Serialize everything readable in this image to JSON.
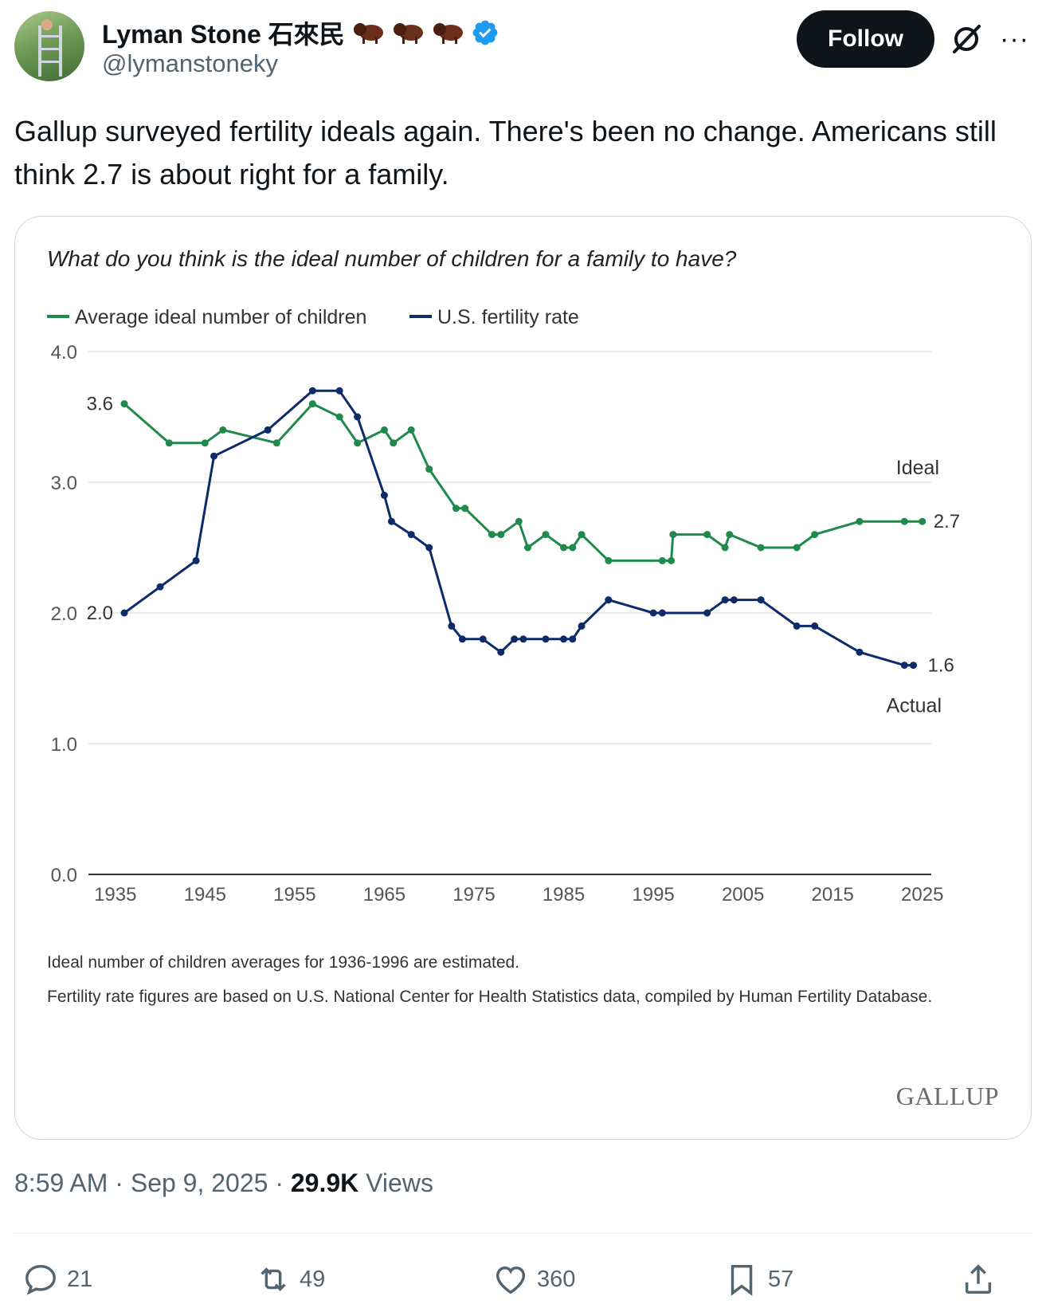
{
  "author": {
    "display_name": "Lyman Stone 石來民",
    "handle": "@lymanstoneky",
    "verified": true,
    "emoji": [
      "bison",
      "bison",
      "bison"
    ]
  },
  "header": {
    "follow_label": "Follow",
    "grok_icon": "grok-icon",
    "more_label": "···"
  },
  "tweet": {
    "text": "Gallup surveyed fertility ideals again. There's been no change. Americans still think 2.7 is about right for a family."
  },
  "chart_data": {
    "type": "line",
    "title": "What do you think is the ideal number of children for a family to have?",
    "ylim": [
      0,
      4
    ],
    "yticks": [
      "0.0",
      "1.0",
      "2.0",
      "3.0",
      "4.0"
    ],
    "xlim": [
      1932,
      2026
    ],
    "xticks": [
      "1935",
      "1945",
      "1955",
      "1965",
      "1975",
      "1985",
      "1995",
      "2005",
      "2015",
      "2025"
    ],
    "series": [
      {
        "name": "Average ideal number of children",
        "color": "#1f8a4c",
        "label": "Ideal",
        "start_label": "3.6",
        "end_label": "2.7",
        "x": [
          1936,
          1941,
          1945,
          1947,
          1953,
          1957,
          1960,
          1962,
          1965,
          1966,
          1968,
          1970,
          1973,
          1974,
          1977,
          1978,
          1980,
          1981,
          1983,
          1985,
          1986,
          1987,
          1990,
          1996,
          1997,
          1997.2,
          2001,
          2003,
          2003.5,
          2007,
          2011,
          2013,
          2018,
          2023,
          2025
        ],
        "values": [
          3.6,
          3.3,
          3.3,
          3.4,
          3.3,
          3.6,
          3.5,
          3.3,
          3.4,
          3.3,
          3.4,
          3.1,
          2.8,
          2.8,
          2.6,
          2.6,
          2.7,
          2.5,
          2.6,
          2.5,
          2.5,
          2.6,
          2.4,
          2.4,
          2.4,
          2.6,
          2.6,
          2.5,
          2.6,
          2.5,
          2.5,
          2.6,
          2.7,
          2.7,
          2.7
        ]
      },
      {
        "name": "U.S. fertility rate",
        "color": "#0d2a6b",
        "label": "Actual",
        "start_label": "2.0",
        "end_label": "1.6",
        "x": [
          1936,
          1940,
          1944,
          1946,
          1952,
          1957,
          1960,
          1962,
          1965,
          1965.8,
          1968,
          1970,
          1972.5,
          1973.7,
          1976,
          1978,
          1979.5,
          1980.5,
          1983,
          1985,
          1986,
          1987,
          1990,
          1995,
          1996,
          2001,
          2003,
          2004,
          2007,
          2011,
          2013,
          2018,
          2023,
          2024
        ],
        "values": [
          2.0,
          2.2,
          2.4,
          3.2,
          3.4,
          3.7,
          3.7,
          3.5,
          2.9,
          2.7,
          2.6,
          2.5,
          1.9,
          1.8,
          1.8,
          1.7,
          1.8,
          1.8,
          1.8,
          1.8,
          1.8,
          1.9,
          2.1,
          2.0,
          2.0,
          2.0,
          2.1,
          2.1,
          2.1,
          1.9,
          1.9,
          1.7,
          1.6,
          1.6
        ]
      }
    ],
    "notes": [
      "Ideal number of children averages for 1936-1996 are estimated.",
      "Fertility rate figures are based on U.S. National Center for Health Statistics data, compiled by Human Fertility Database."
    ],
    "source_logo": "GALLUP"
  },
  "meta": {
    "time": "8:59 AM",
    "date": "Sep 9, 2025",
    "views_count": "29.9K",
    "views_label": "Views"
  },
  "actions": {
    "replies": "21",
    "reposts": "49",
    "likes": "360",
    "bookmarks": "57"
  }
}
